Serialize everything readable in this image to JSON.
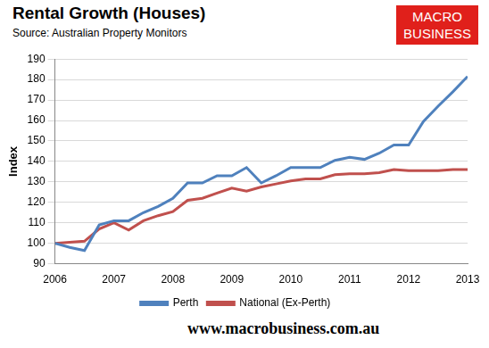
{
  "chart_data": {
    "type": "line",
    "title": "Rental Growth (Houses)",
    "subtitle": "Source: Australian Property Monitors",
    "annotations": [
      "MACRO BUSINESS",
      "www.macrobusiness.com.au"
    ],
    "y_label": "Index",
    "x": [
      2006,
      2006.25,
      2006.5,
      2006.75,
      2007,
      2007.25,
      2007.5,
      2007.75,
      2008,
      2008.25,
      2008.5,
      2008.75,
      2009,
      2009.25,
      2009.5,
      2009.75,
      2010,
      2010.25,
      2010.5,
      2010.75,
      2011,
      2011.25,
      2011.5,
      2011.75,
      2012,
      2012.25,
      2012.5,
      2012.75,
      2013
    ],
    "series": [
      {
        "name": "Perth",
        "color": "#4f81bd",
        "values": [
          100,
          98,
          96.5,
          109,
          111,
          111,
          115,
          118,
          122,
          129.5,
          129.5,
          133,
          133,
          137,
          129.5,
          133,
          137,
          137,
          137,
          140.5,
          142,
          141,
          144,
          148,
          148,
          159.5,
          167,
          174,
          181.5
        ]
      },
      {
        "name": "National (Ex-Perth)",
        "color": "#c0504d",
        "values": [
          100,
          100.5,
          101,
          107,
          110,
          106.5,
          111,
          113.5,
          115.5,
          121,
          122,
          124.5,
          127,
          125.5,
          127.5,
          129,
          130.5,
          131.5,
          131.5,
          133.5,
          134,
          134,
          134.5,
          136,
          135.5,
          135.5,
          135.5,
          136,
          136
        ]
      }
    ],
    "xlim": [
      2006,
      2013
    ],
    "xticks": [
      2006,
      2007,
      2008,
      2009,
      2010,
      2011,
      2012,
      2013
    ],
    "ylim": [
      90,
      190
    ],
    "yticks": [
      90,
      100,
      110,
      120,
      130,
      140,
      150,
      160,
      170,
      180,
      190
    ],
    "grid": true,
    "legend": "bottom"
  }
}
